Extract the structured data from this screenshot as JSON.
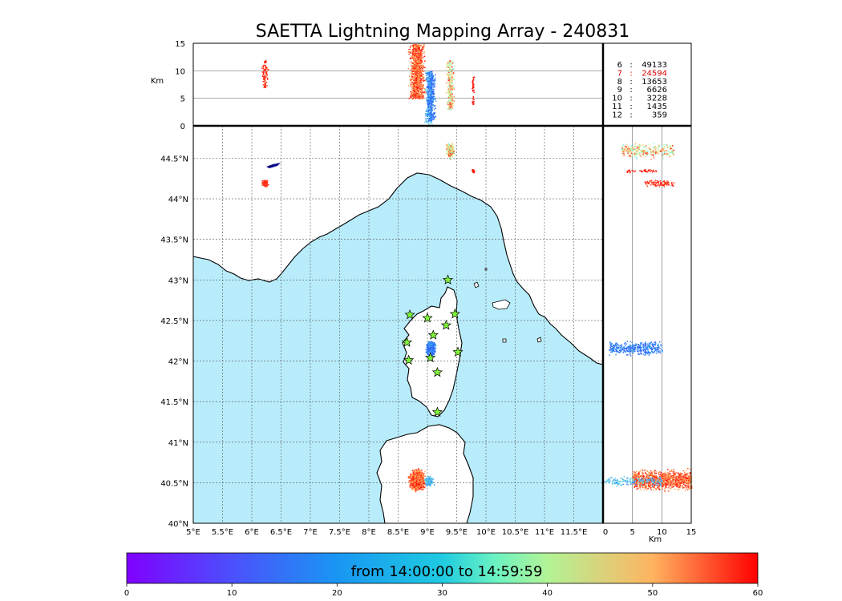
{
  "title": "SAETTA Lightning Mapping Array - 240831",
  "colors": {
    "sea": "#b8ecfb",
    "land": "#ffffff",
    "rivers": "#3a3aff",
    "coast": "#000000",
    "stations": "#7ef53b",
    "grid": "#555555"
  },
  "chart_data": {
    "type": "scatter",
    "map": {
      "xlim": [
        5,
        12
      ],
      "ylim": [
        40,
        44.9
      ],
      "x_ticks": [
        "5°E",
        "5.5°E",
        "6°E",
        "6.5°E",
        "7°E",
        "7.5°E",
        "8°E",
        "8.5°E",
        "9°E",
        "9.5°E",
        "10°E",
        "10.5°E",
        "11°E",
        "11.5°E"
      ],
      "y_ticks": [
        "40°N",
        "40.5°N",
        "41°N",
        "41.5°N",
        "42°N",
        "42.5°N",
        "43°N",
        "43.5°N",
        "44°N",
        "44.5°N"
      ],
      "grid": "dotted"
    },
    "altitude_lon_panel": {
      "ylabel": "Km",
      "ylim": [
        0,
        15
      ],
      "y_ticks": [
        "0",
        "5",
        "10",
        "15"
      ]
    },
    "altitude_lat_panel": {
      "xlabel": "Km",
      "xlim": [
        0,
        15
      ],
      "x_ticks": [
        "0",
        "5",
        "10",
        "15"
      ]
    },
    "station_counts": [
      {
        "stations": "6",
        "sep": ":",
        "count": "49133",
        "highlight": false
      },
      {
        "stations": "7",
        "sep": ":",
        "count": "24594",
        "highlight": true
      },
      {
        "stations": "8",
        "sep": ":",
        "count": "13653",
        "highlight": false
      },
      {
        "stations": "9",
        "sep": ":",
        "count": "6626",
        "highlight": false
      },
      {
        "stations": "10",
        "sep": ":",
        "count": "3228",
        "highlight": false
      },
      {
        "stations": "11",
        "sep": ":",
        "count": "1435",
        "highlight": false
      },
      {
        "stations": "12",
        "sep": ":",
        "count": "359",
        "highlight": false
      }
    ],
    "lightning_clusters": [
      {
        "lon_range": [
          6.15,
          6.28
        ],
        "lat_range": [
          44.14,
          44.25
        ],
        "alt_range": [
          7,
          12
        ],
        "time_range": [
          52,
          60
        ],
        "n": 90
      },
      {
        "lon_range": [
          8.65,
          8.98
        ],
        "lat_range": [
          40.38,
          40.7
        ],
        "alt_range": [
          5,
          15
        ],
        "time_range": [
          44,
          60
        ],
        "n": 1100
      },
      {
        "lon_range": [
          8.92,
          9.12
        ],
        "lat_range": [
          40.45,
          40.6
        ],
        "alt_range": [
          0,
          10
        ],
        "time_range": [
          10,
          22
        ],
        "n": 180
      },
      {
        "lon_range": [
          8.95,
          9.15
        ],
        "lat_range": [
          42.05,
          42.28
        ],
        "alt_range": [
          1,
          10
        ],
        "time_range": [
          6,
          14
        ],
        "n": 380
      },
      {
        "lon_range": [
          9.3,
          9.47
        ],
        "lat_range": [
          44.48,
          44.72
        ],
        "alt_range": [
          3,
          12
        ],
        "time_range": [
          20,
          60
        ],
        "n": 280
      },
      {
        "lon_range": [
          9.75,
          9.8
        ],
        "lat_range": [
          44.32,
          44.38
        ],
        "alt_range": [
          4,
          9
        ],
        "time_range": [
          55,
          60
        ],
        "n": 40
      }
    ],
    "stations": [
      {
        "lon": 9.35,
        "lat": 43.0
      },
      {
        "lon": 8.7,
        "lat": 42.57
      },
      {
        "lon": 9.0,
        "lat": 42.53
      },
      {
        "lon": 9.47,
        "lat": 42.58
      },
      {
        "lon": 9.32,
        "lat": 42.44
      },
      {
        "lon": 9.1,
        "lat": 42.32
      },
      {
        "lon": 8.65,
        "lat": 42.23
      },
      {
        "lon": 9.52,
        "lat": 42.11
      },
      {
        "lon": 8.68,
        "lat": 42.01
      },
      {
        "lon": 9.05,
        "lat": 42.04
      },
      {
        "lon": 9.17,
        "lat": 41.86
      },
      {
        "lon": 9.17,
        "lat": 41.37
      }
    ],
    "colorbar": {
      "label": "from 14:00:00 to 14:59:59",
      "ticks": [
        "0",
        "10",
        "20",
        "30",
        "40",
        "50",
        "60"
      ],
      "range": [
        0,
        60
      ],
      "colormap": "rainbow"
    }
  }
}
